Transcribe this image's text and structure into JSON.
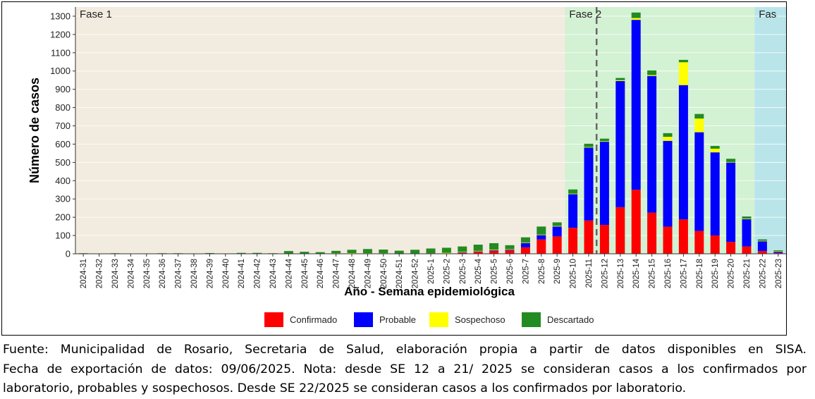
{
  "chart_data": {
    "type": "bar",
    "stacked": true,
    "title": "",
    "xlabel": "Año - Semana epidemiológica",
    "ylabel": "Número de casos",
    "ylim": [
      0,
      1350
    ],
    "yticks": [
      0,
      100,
      200,
      300,
      400,
      500,
      600,
      700,
      800,
      900,
      1000,
      1100,
      1200,
      1300
    ],
    "grid": true,
    "legend_position": "bottom",
    "categories": [
      "2024-31",
      "2024-32",
      "2024-33",
      "2024-34",
      "2024-35",
      "2024-36",
      "2024-37",
      "2024-38",
      "2024-39",
      "2024-40",
      "2024-41",
      "2024-42",
      "2024-43",
      "2024-44",
      "2024-45",
      "2024-46",
      "2024-47",
      "2024-48",
      "2024-49",
      "2024-50",
      "2024-51",
      "2024-52",
      "2025-1",
      "2025-2",
      "2025-3",
      "2025-4",
      "2025-5",
      "2025-6",
      "2025-7",
      "2025-8",
      "2025-9",
      "2025-10",
      "2025-11",
      "2025-12",
      "2025-13",
      "2025-14",
      "2025-15",
      "2025-16",
      "2025-17",
      "2025-18",
      "2025-19",
      "2025-20",
      "2025-21",
      "2025-22",
      "2025-23"
    ],
    "series": [
      {
        "name": "Confirmado",
        "color": "#ff0000",
        "values": [
          0,
          0,
          0,
          0,
          0,
          0,
          0,
          0,
          0,
          0,
          0,
          0,
          0,
          0,
          0,
          0,
          2,
          3,
          2,
          2,
          1,
          2,
          3,
          4,
          6,
          12,
          16,
          18,
          35,
          78,
          95,
          142,
          182,
          158,
          255,
          350,
          225,
          148,
          188,
          125,
          100,
          65,
          40,
          15,
          5
        ]
      },
      {
        "name": "Probable",
        "color": "#0000ff",
        "values": [
          0,
          0,
          0,
          0,
          0,
          0,
          0,
          0,
          0,
          0,
          0,
          0,
          0,
          0,
          0,
          0,
          0,
          0,
          0,
          0,
          0,
          0,
          0,
          0,
          2,
          2,
          4,
          5,
          25,
          25,
          55,
          185,
          400,
          455,
          690,
          930,
          748,
          470,
          735,
          540,
          455,
          435,
          150,
          55,
          8
        ]
      },
      {
        "name": "Sospechoso",
        "color": "#ffff00",
        "values": [
          0,
          0,
          0,
          0,
          0,
          0,
          0,
          0,
          0,
          0,
          2,
          2,
          0,
          1,
          0,
          0,
          1,
          1,
          1,
          1,
          0,
          0,
          0,
          1,
          2,
          2,
          2,
          2,
          2,
          2,
          2,
          2,
          2,
          3,
          5,
          10,
          5,
          22,
          125,
          75,
          20,
          2,
          2,
          1,
          1
        ]
      },
      {
        "name": "Descartado",
        "color": "#228b22",
        "values": [
          3,
          1,
          3,
          2,
          2,
          3,
          3,
          1,
          4,
          2,
          3,
          3,
          3,
          14,
          11,
          9,
          13,
          18,
          23,
          20,
          16,
          20,
          26,
          28,
          30,
          34,
          36,
          22,
          28,
          44,
          20,
          23,
          18,
          14,
          12,
          30,
          25,
          20,
          13,
          25,
          15,
          18,
          12,
          8,
          5
        ]
      }
    ],
    "phases": [
      {
        "label": "Fase 1",
        "start": "2024-31",
        "end": "2025-9",
        "color": "#f2ebdf"
      },
      {
        "label": "Fase 2",
        "start": "2025-10",
        "end": "2025-21",
        "color": "#d3f1d3"
      },
      {
        "label": "Fas",
        "start": "2025-22",
        "end": "2025-23",
        "color": "#b9e5ea"
      }
    ],
    "vline_between": [
      "2025-11",
      "2025-12"
    ]
  },
  "caption": {
    "line1": "Fuente: Municipalidad de Rosario, Secretaria de Salud, elaboración propia a partir de datos disponibles en SISA.",
    "line2": "Fecha de exportación de datos: 09/06/2025. Nota: desde SE 12 a 21/ 2025 se  consideran casos a los confirmados por",
    "line3": "laboratorio, probables y sospechosos. Desde SE 22/2025  se  consideran casos a los confirmados por laboratorio."
  }
}
